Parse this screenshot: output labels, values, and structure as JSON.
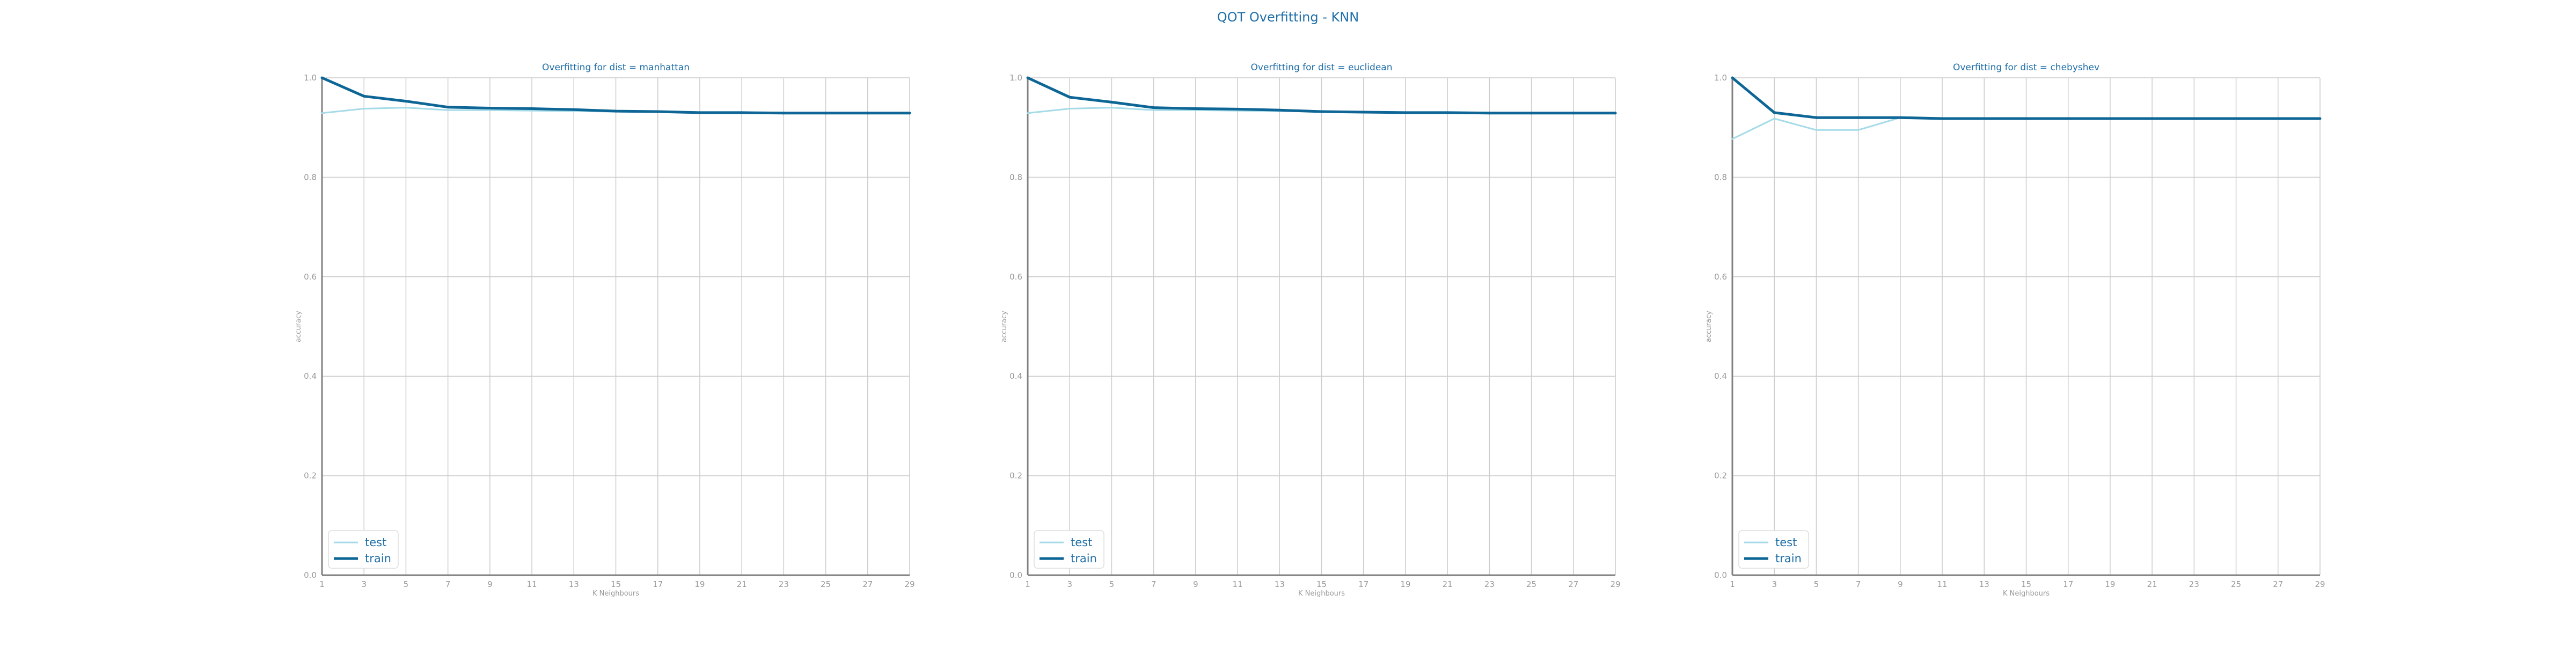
{
  "figure": {
    "suptitle": "QOT Overfitting - KNN",
    "colors": {
      "title": "#1f6fa8",
      "train": "#0e6696",
      "test": "#a5dbe8",
      "grid": "#cccccc",
      "axis": "#808080",
      "tick_text": "#999999"
    }
  },
  "chart_data": [
    {
      "type": "line",
      "title": "Overfitting for dist = manhattan",
      "xlabel": "K Neighbours",
      "ylabel": "accuracy",
      "x": [
        1,
        3,
        5,
        7,
        9,
        11,
        13,
        15,
        17,
        19,
        21,
        23,
        25,
        27,
        29
      ],
      "xlim": [
        1,
        29
      ],
      "ylim": [
        0.0,
        1.0
      ],
      "yticks": [
        0.0,
        0.2,
        0.4,
        0.6,
        0.8,
        1.0
      ],
      "grid": true,
      "legend": "lower-left",
      "series": [
        {
          "name": "test",
          "values": [
            0.929,
            0.938,
            0.94,
            0.935,
            0.935,
            0.934,
            0.933,
            0.932,
            0.931,
            0.931,
            0.93,
            0.93,
            0.929,
            0.929,
            0.929
          ]
        },
        {
          "name": "train",
          "values": [
            1.0,
            0.963,
            0.953,
            0.941,
            0.939,
            0.938,
            0.936,
            0.933,
            0.932,
            0.93,
            0.93,
            0.929,
            0.929,
            0.929,
            0.929
          ]
        }
      ]
    },
    {
      "type": "line",
      "title": "Overfitting for dist = euclidean",
      "xlabel": "K Neighbours",
      "ylabel": "accuracy",
      "x": [
        1,
        3,
        5,
        7,
        9,
        11,
        13,
        15,
        17,
        19,
        21,
        23,
        25,
        27,
        29
      ],
      "xlim": [
        1,
        29
      ],
      "ylim": [
        0.0,
        1.0
      ],
      "yticks": [
        0.0,
        0.2,
        0.4,
        0.6,
        0.8,
        1.0
      ],
      "grid": true,
      "legend": "lower-left",
      "series": [
        {
          "name": "test",
          "values": [
            0.929,
            0.938,
            0.94,
            0.935,
            0.935,
            0.934,
            0.933,
            0.932,
            0.931,
            0.931,
            0.93,
            0.93,
            0.929,
            0.929,
            0.929
          ]
        },
        {
          "name": "train",
          "values": [
            1.0,
            0.961,
            0.951,
            0.94,
            0.938,
            0.937,
            0.935,
            0.932,
            0.931,
            0.93,
            0.93,
            0.929,
            0.929,
            0.929,
            0.929
          ]
        }
      ]
    },
    {
      "type": "line",
      "title": "Overfitting for dist = chebyshev",
      "xlabel": "K Neighbours",
      "ylabel": "accuracy",
      "x": [
        1,
        3,
        5,
        7,
        9,
        11,
        13,
        15,
        17,
        19,
        21,
        23,
        25,
        27,
        29
      ],
      "xlim": [
        1,
        29
      ],
      "ylim": [
        0.0,
        1.0
      ],
      "yticks": [
        0.0,
        0.2,
        0.4,
        0.6,
        0.8,
        1.0
      ],
      "grid": true,
      "legend": "lower-left",
      "series": [
        {
          "name": "test",
          "values": [
            0.877,
            0.918,
            0.895,
            0.895,
            0.92,
            0.918,
            0.918,
            0.918,
            0.918,
            0.918,
            0.918,
            0.918,
            0.918,
            0.918,
            0.918
          ]
        },
        {
          "name": "train",
          "values": [
            1.0,
            0.93,
            0.92,
            0.92,
            0.92,
            0.918,
            0.918,
            0.918,
            0.918,
            0.918,
            0.918,
            0.918,
            0.918,
            0.918,
            0.918
          ]
        }
      ]
    }
  ]
}
